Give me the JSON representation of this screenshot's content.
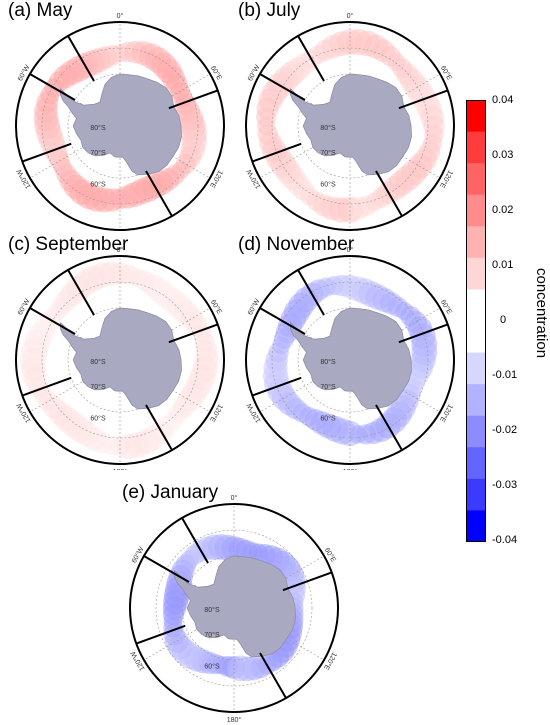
{
  "chart_data": {
    "type": "heatmap",
    "projection": "south-polar-stereographic",
    "variable": "concentration",
    "panels": [
      {
        "label": "(a) May",
        "sign": "positive",
        "intensity": 0.012,
        "band_lat": -62
      },
      {
        "label": "(b) July",
        "sign": "positive",
        "intensity": 0.008,
        "band_lat": -59
      },
      {
        "label": "(c) September",
        "sign": "positive",
        "intensity": 0.004,
        "band_lat": -58
      },
      {
        "label": "(d) November",
        "sign": "negative",
        "intensity": -0.012,
        "band_lat": -62
      },
      {
        "label": "(e) January",
        "sign": "negative",
        "intensity": -0.014,
        "band_lat": -66
      }
    ],
    "map_labels": {
      "lon": [
        "0°",
        "60°E",
        "120°E",
        "180°",
        "120°W",
        "60°W"
      ],
      "lat": [
        "60°S",
        "70°S",
        "80°S"
      ]
    },
    "colorbar": {
      "title": "concentration",
      "range": [
        -0.04,
        0.04
      ],
      "ticks": [
        "0.04",
        "0.03",
        "0.02",
        "0.01",
        "0",
        "-0.01",
        "-0.02",
        "-0.03",
        "-0.04"
      ],
      "colors": [
        "#ff0000",
        "#ff3b3b",
        "#ff6464",
        "#ff8c8c",
        "#ffb2b2",
        "#ffd6d6",
        "#ffffff",
        "#ffffff",
        "#d6d6ff",
        "#b2b2ff",
        "#8c8cff",
        "#6464ff",
        "#3b3bff",
        "#0000ff"
      ]
    }
  }
}
